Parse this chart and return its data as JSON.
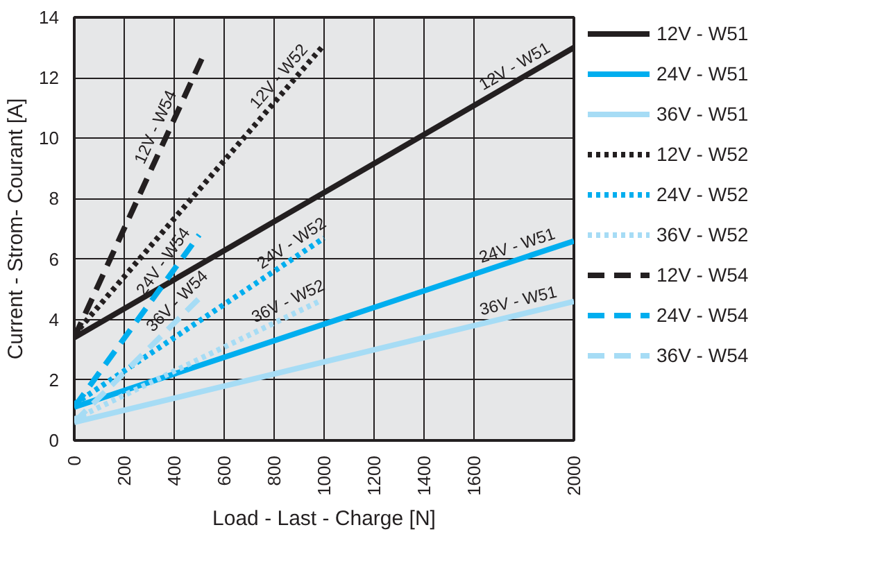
{
  "chart_data": {
    "type": "line",
    "xlabel": "Load - Last - Charge [N]",
    "ylabel": "Current - Strom- Courant [A]",
    "xlim": [
      0,
      2000
    ],
    "xticks": [
      0,
      200,
      400,
      600,
      800,
      1000,
      1200,
      1400,
      1600,
      2000
    ],
    "ylim": [
      0,
      14
    ],
    "yticks": [
      0,
      2,
      4,
      6,
      8,
      10,
      12,
      14
    ],
    "grid": true,
    "legend": "right",
    "marker": "none",
    "series": [
      {
        "name": "12V - W51",
        "color": "#231f20",
        "line_style": "solid",
        "x": [
          0,
          2000
        ],
        "values": [
          3.4,
          13.0
        ]
      },
      {
        "name": "24V - W51",
        "color": "#00aeef",
        "line_style": "solid",
        "x": [
          0,
          2000
        ],
        "values": [
          1.1,
          6.6
        ]
      },
      {
        "name": "36V - W51",
        "color": "#a6dcf5",
        "line_style": "solid",
        "x": [
          0,
          2000
        ],
        "values": [
          0.6,
          4.6
        ]
      },
      {
        "name": "12V - W52",
        "color": "#231f20",
        "line_style": "dotted",
        "x": [
          0,
          990
        ],
        "values": [
          3.5,
          13.0
        ]
      },
      {
        "name": "24V - W52",
        "color": "#00aeef",
        "line_style": "dotted",
        "x": [
          0,
          1000
        ],
        "values": [
          1.2,
          6.7
        ]
      },
      {
        "name": "36V - W52",
        "color": "#a6dcf5",
        "line_style": "dotted",
        "x": [
          0,
          980
        ],
        "values": [
          0.7,
          4.6
        ]
      },
      {
        "name": "12V - W54",
        "color": "#231f20",
        "line_style": "dashed",
        "x": [
          0,
          520
        ],
        "values": [
          3.4,
          12.8
        ]
      },
      {
        "name": "24V - W54",
        "color": "#00aeef",
        "line_style": "dashed",
        "x": [
          0,
          500
        ],
        "values": [
          1.1,
          6.8
        ]
      },
      {
        "name": "36V - W54",
        "color": "#a6dcf5",
        "line_style": "dashed",
        "x": [
          0,
          500
        ],
        "values": [
          0.6,
          4.7
        ]
      }
    ],
    "annotations": [
      {
        "text": "12V - W51",
        "x": 1790,
        "y": 11.99
      },
      {
        "text": "24V - W51",
        "x": 1790,
        "y": 6.02
      },
      {
        "text": "36V - W51",
        "x": 1790,
        "y": 4.18
      },
      {
        "text": "12V - W52",
        "x": 860,
        "y": 11.75
      },
      {
        "text": "24V - W52",
        "x": 900,
        "y": 6.15
      },
      {
        "text": "36V - W52",
        "x": 880,
        "y": 4.2
      },
      {
        "text": "12V - W54",
        "x": 375,
        "y": 10.18
      },
      {
        "text": "24V - W54",
        "x": 400,
        "y": 5.66
      },
      {
        "text": "36V - W54",
        "x": 450,
        "y": 4.29
      }
    ]
  }
}
